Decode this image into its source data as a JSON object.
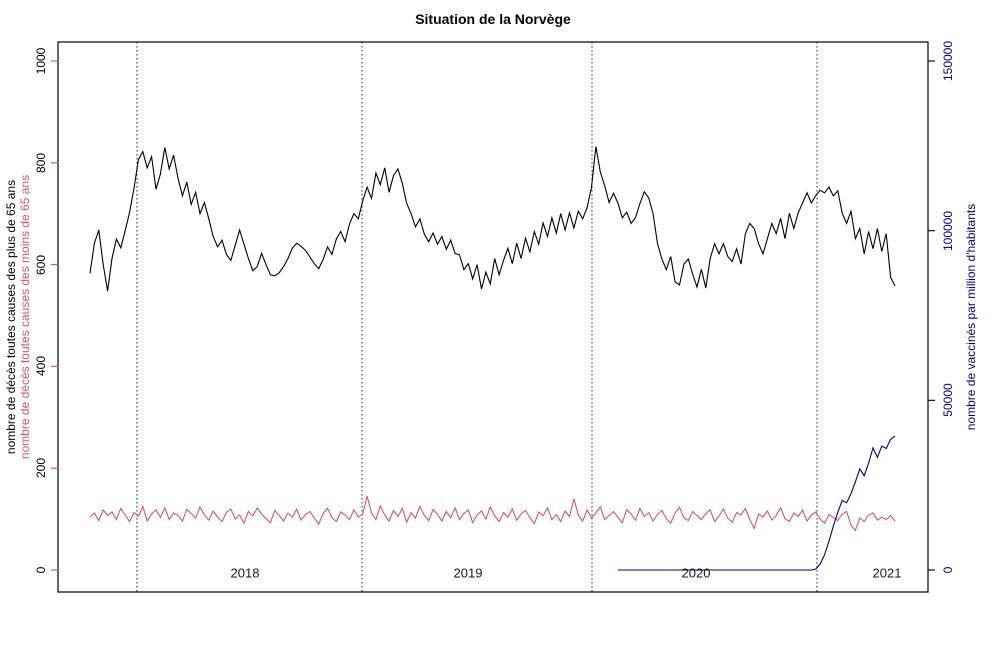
{
  "chart_data": {
    "type": "line",
    "title": "Situation de la Norvège",
    "x_axis": {
      "unit": "week",
      "start_approx": "2017-W42",
      "year_labels": [
        "2018",
        "2019",
        "2020",
        "2021"
      ],
      "gridlines": "dotted vertical line at each year start",
      "gridline_color": "#1f1f4e"
    },
    "left_axis": {
      "label_primary": "nombre de décès toutes causes des plus de 65 ans",
      "label_secondary": "nombre de décès toutes causes des moins de 65 ans",
      "label_primary_color": "#000000",
      "label_secondary_color": "#DF536B",
      "tick_color": "#DF536B",
      "ticks": [
        0,
        200,
        400,
        600,
        800,
        1000
      ],
      "range": [
        0,
        1000
      ]
    },
    "right_axis": {
      "label": "nombre de vaccinés par million d'habitants",
      "label_color": "#00008B",
      "tick_color": "#00008B",
      "ticks": [
        0,
        50000,
        100000,
        150000
      ],
      "range": [
        0,
        150000
      ]
    },
    "legend_position": "none",
    "series": [
      {
        "name": "décès toutes causes des plus de 65 ans",
        "color": "#000000",
        "axis": "left",
        "values": [
          583,
          642,
          668,
          600,
          548,
          612,
          650,
          633,
          667,
          703,
          750,
          806,
          822,
          790,
          812,
          748,
          778,
          830,
          788,
          815,
          770,
          735,
          762,
          718,
          742,
          700,
          722,
          690,
          655,
          635,
          648,
          620,
          608,
          638,
          668,
          640,
          612,
          588,
          596,
          622,
          600,
          580,
          578,
          584,
          596,
          612,
          632,
          642,
          636,
          628,
          615,
          602,
          592,
          610,
          635,
          620,
          650,
          665,
          645,
          680,
          700,
          690,
          725,
          752,
          730,
          780,
          757,
          790,
          742,
          775,
          788,
          760,
          720,
          700,
          674,
          690,
          660,
          645,
          662,
          640,
          655,
          630,
          648,
          622,
          619,
          590,
          602,
          572,
          600,
          552,
          585,
          562,
          612,
          580,
          608,
          632,
          602,
          642,
          612,
          652,
          625,
          665,
          640,
          682,
          655,
          692,
          662,
          700,
          668,
          702,
          672,
          705,
          690,
          712,
          752,
          832,
          782,
          755,
          722,
          740,
          721,
          692,
          703,
          681,
          692,
          720,
          743,
          731,
          700,
          641,
          611,
          590,
          616,
          566,
          560,
          601,
          611,
          581,
          556,
          591,
          554,
          612,
          641,
          621,
          641,
          616,
          606,
          631,
          601,
          661,
          681,
          671,
          641,
          621,
          651,
          681,
          661,
          691,
          651,
          701,
          671,
          702,
          721,
          741,
          721,
          736,
          746,
          741,
          752,
          735,
          745,
          701,
          681,
          705,
          651,
          671,
          621,
          665,
          631,
          671,
          626,
          661,
          575,
          558
        ]
      },
      {
        "name": "décès toutes causes des moins de 65 ans",
        "color": "#DF536B",
        "axis": "left",
        "values": [
          104,
          112,
          97,
          118,
          107,
          114,
          99,
          121,
          108,
          95,
          113,
          105,
          125,
          96,
          110,
          118,
          103,
          122,
          99,
          112,
          107,
          96,
          119,
          111,
          102,
          124,
          108,
          98,
          116,
          104,
          95,
          113,
          120,
          100,
          108,
          92,
          115,
          106,
          122,
          110,
          101,
          93,
          117,
          107,
          96,
          112,
          104,
          119,
          98,
          109,
          115,
          102,
          90,
          111,
          121,
          103,
          95,
          114,
          108,
          99,
          118,
          104,
          110,
          145,
          112,
          99,
          126,
          108,
          96,
          117,
          105,
          121,
          94,
          113,
          102,
          125,
          107,
          97,
          119,
          109,
          96,
          115,
          103,
          122,
          99,
          111,
          118,
          93,
          108,
          116,
          100,
          124,
          106,
          95,
          113,
          104,
          120,
          98,
          110,
          117,
          103,
          91,
          114,
          107,
          122,
          99,
          109,
          95,
          116,
          105,
          140,
          108,
          96,
          118,
          102,
          112,
          124,
          99,
          107,
          115,
          104,
          93,
          119,
          110,
          98,
          121,
          105,
          113,
          96,
          109,
          117,
          101,
          92,
          112,
          123,
          103,
          97,
          115,
          107,
          99,
          111,
          118,
          95,
          106,
          120,
          102,
          94,
          113,
          108,
          121,
          99,
          82,
          110,
          104,
          116,
          98,
          107,
          122,
          101,
          95,
          112,
          105,
          118,
          96,
          108,
          114,
          100,
          92,
          109,
          103,
          97,
          110,
          115,
          88,
          78,
          102,
          95,
          108,
          112,
          98,
          104,
          99,
          107,
          96
        ]
      },
      {
        "name": "vaccinés par million d'habitants",
        "color": "#00008B",
        "axis": "right",
        "values": [
          null,
          null,
          null,
          null,
          null,
          null,
          null,
          null,
          null,
          null,
          null,
          null,
          null,
          null,
          null,
          null,
          null,
          null,
          null,
          null,
          null,
          null,
          null,
          null,
          null,
          null,
          null,
          null,
          null,
          null,
          null,
          null,
          null,
          null,
          null,
          null,
          null,
          null,
          null,
          null,
          null,
          null,
          null,
          null,
          null,
          null,
          null,
          null,
          null,
          null,
          null,
          null,
          null,
          null,
          null,
          null,
          null,
          null,
          null,
          null,
          null,
          null,
          null,
          null,
          null,
          null,
          null,
          null,
          null,
          null,
          null,
          null,
          null,
          null,
          null,
          null,
          null,
          null,
          null,
          null,
          null,
          null,
          null,
          null,
          null,
          null,
          null,
          null,
          null,
          null,
          null,
          null,
          null,
          null,
          null,
          null,
          null,
          null,
          null,
          null,
          null,
          null,
          null,
          null,
          null,
          null,
          null,
          null,
          null,
          null,
          null,
          null,
          null,
          null,
          null,
          null,
          null,
          null,
          null,
          null,
          0,
          0,
          0,
          0,
          0,
          0,
          0,
          0,
          0,
          0,
          0,
          0,
          0,
          0,
          0,
          0,
          0,
          0,
          0,
          0,
          0,
          0,
          0,
          0,
          0,
          0,
          0,
          0,
          0,
          0,
          0,
          0,
          0,
          0,
          0,
          0,
          0,
          0,
          0,
          0,
          0,
          0,
          0,
          0,
          0,
          300,
          1800,
          4500,
          8500,
          13000,
          17000,
          20500,
          19800,
          22500,
          26000,
          29800,
          27800,
          31500,
          36000,
          33200,
          36500,
          35800,
          38500,
          39500
        ]
      }
    ]
  }
}
